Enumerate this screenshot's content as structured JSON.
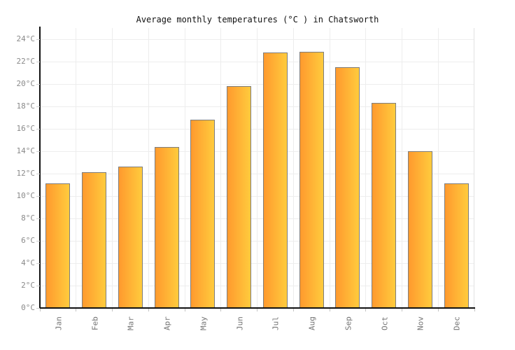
{
  "title": "Average monthly temperatures (°C ) in Chatsworth",
  "chart_data": {
    "type": "bar",
    "title": "Average monthly temperatures (°C ) in Chatsworth",
    "categories": [
      "Jan",
      "Feb",
      "Mar",
      "Apr",
      "May",
      "Jun",
      "Jul",
      "Aug",
      "Sep",
      "Oct",
      "Nov",
      "Dec"
    ],
    "values": [
      11.1,
      12.1,
      12.6,
      14.4,
      16.8,
      19.8,
      22.8,
      22.9,
      21.5,
      18.3,
      14.0,
      11.1
    ],
    "xlabel": "",
    "ylabel": "",
    "ylim": [
      0,
      25
    ],
    "y_tick_step": 2,
    "y_tick_labels": [
      "0°C",
      "2°C",
      "4°C",
      "6°C",
      "8°C",
      "10°C",
      "12°C",
      "14°C",
      "16°C",
      "18°C",
      "20°C",
      "22°C",
      "24°C"
    ],
    "grid": true,
    "legend": false,
    "colors": {
      "bar_gradient_start": "#ff9a2e",
      "bar_gradient_end": "#ffcb3d",
      "bar_border": "#7d7d7d",
      "axis": "#111111",
      "gridline": "#ededed",
      "tick_label": "#8a8a8a",
      "title_text": "#111111"
    }
  }
}
